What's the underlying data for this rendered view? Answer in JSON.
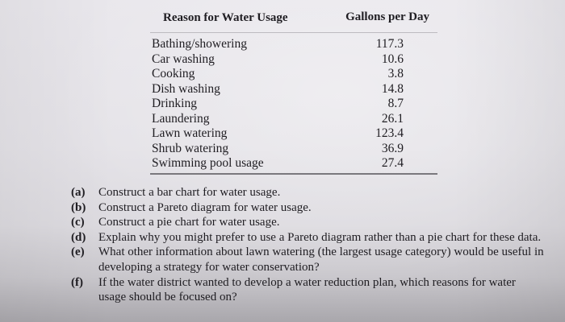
{
  "table": {
    "headers": {
      "reason": "Reason for Water Usage",
      "gallons": "Gallons per Day"
    },
    "rows": [
      {
        "reason": "Bathing/showering",
        "gallons": "117.3"
      },
      {
        "reason": "Car washing",
        "gallons": "10.6"
      },
      {
        "reason": "Cooking",
        "gallons": "3.8"
      },
      {
        "reason": "Dish washing",
        "gallons": "14.8"
      },
      {
        "reason": "Drinking",
        "gallons": "8.7"
      },
      {
        "reason": "Laundering",
        "gallons": "26.1"
      },
      {
        "reason": "Lawn watering",
        "gallons": "123.4"
      },
      {
        "reason": "Shrub watering",
        "gallons": "36.9"
      },
      {
        "reason": "Swimming pool usage",
        "gallons": "27.4"
      }
    ]
  },
  "questions": [
    {
      "label": "(a)",
      "text": "Construct a bar chart for water usage."
    },
    {
      "label": "(b)",
      "text": "Construct a Pareto diagram for water usage."
    },
    {
      "label": "(c)",
      "text": "Construct a pie chart for water usage."
    },
    {
      "label": "(d)",
      "text": "Explain why you might prefer to use a Pareto diagram rather than a pie chart for these data."
    },
    {
      "label": "(e)",
      "text": "What other information about lawn watering (the largest usage category) would be useful in developing a strategy for water conservation?"
    },
    {
      "label": "(f)",
      "text": "If the water district wanted to develop a water reduction plan, which reasons for water usage should be focused on?"
    }
  ]
}
